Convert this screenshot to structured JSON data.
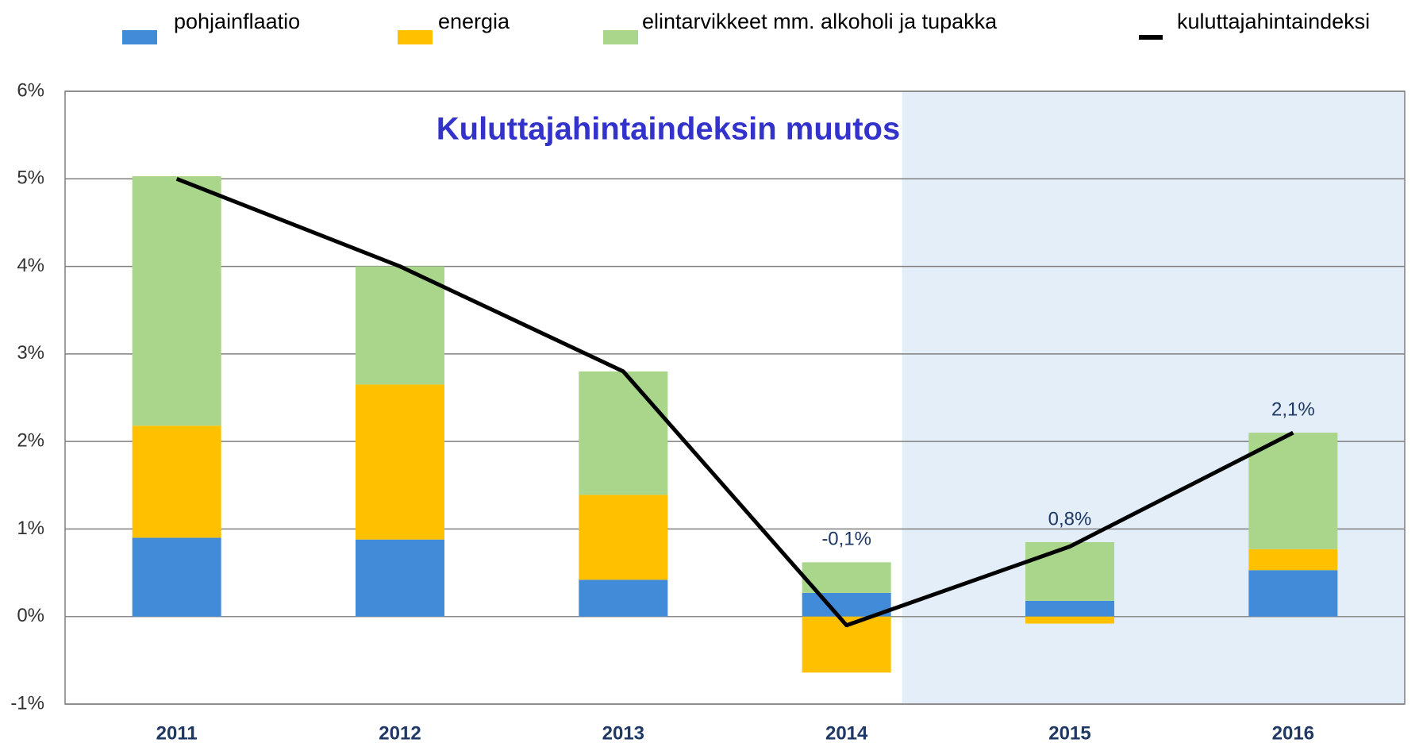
{
  "chart_data": {
    "type": "stacked_bar_line",
    "title": "Kuluttajahintaindeksin muutos",
    "categories": [
      "2011",
      "2012",
      "2013",
      "2014",
      "2015",
      "2016"
    ],
    "series": [
      {
        "name": "pohjainflaatio",
        "color": "#428bd9",
        "values": [
          0.9,
          0.88,
          0.42,
          0.27,
          0.18,
          0.53
        ]
      },
      {
        "name": "energia",
        "color": "#ffc000",
        "values": [
          1.28,
          1.77,
          0.97,
          -0.64,
          -0.08,
          0.24
        ]
      },
      {
        "name": "elintarvikkeet mm. alkoholi ja tupakka",
        "color": "#a9d68b",
        "values": [
          2.85,
          1.35,
          1.41,
          0.35,
          0.67,
          1.33
        ]
      },
      {
        "name": "kuluttajahintaindeksi",
        "type": "line",
        "color": "#000000",
        "values": [
          5.0,
          4.0,
          2.8,
          -0.1,
          0.8,
          2.1
        ],
        "value_labels": [
          null,
          null,
          null,
          "-0,1%",
          "0,8%",
          "2,1%"
        ]
      }
    ],
    "ylim": [
      -1,
      6
    ],
    "yticks": [
      {
        "value": -1,
        "label": "-1%"
      },
      {
        "value": 0,
        "label": "0%"
      },
      {
        "value": 1,
        "label": "1%"
      },
      {
        "value": 2,
        "label": "2%"
      },
      {
        "value": 3,
        "label": "3%"
      },
      {
        "value": 4,
        "label": "4%"
      },
      {
        "value": 5,
        "label": "5%"
      },
      {
        "value": 6,
        "label": "6%"
      }
    ],
    "grid": true,
    "legend": "top"
  }
}
